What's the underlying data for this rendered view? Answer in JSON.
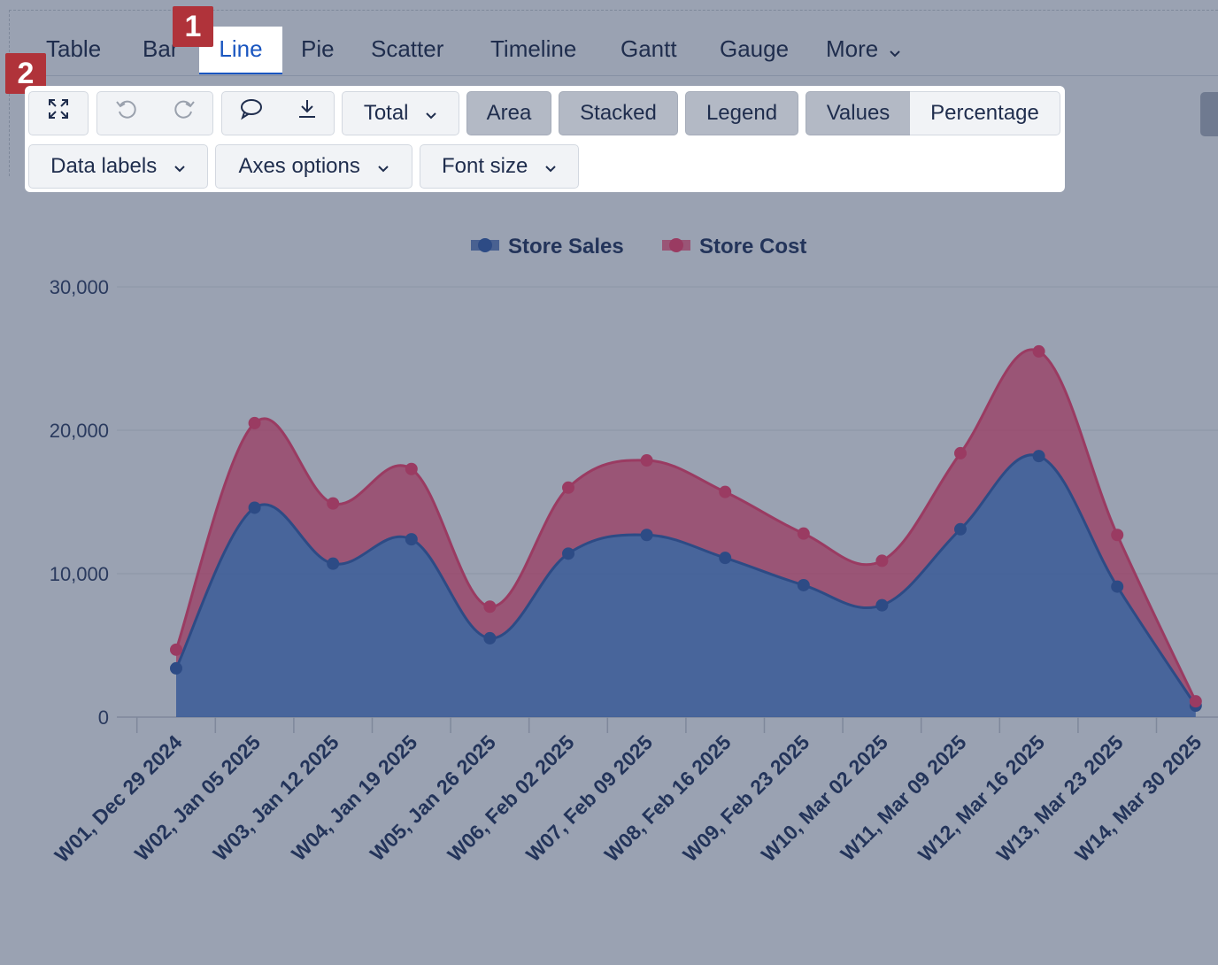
{
  "tabs": [
    {
      "label": "Table",
      "active": false
    },
    {
      "label": "Bar",
      "active": false
    },
    {
      "label": "Line",
      "active": true
    },
    {
      "label": "Pie",
      "active": false
    },
    {
      "label": "Scatter",
      "active": false
    },
    {
      "label": "Timeline",
      "active": false
    },
    {
      "label": "Gantt",
      "active": false
    },
    {
      "label": "Gauge",
      "active": false
    },
    {
      "label": "More",
      "active": false
    }
  ],
  "badges": {
    "first": "1",
    "second": "2"
  },
  "toolbar": {
    "total_label": "Total",
    "area_label": "Area",
    "stacked_label": "Stacked",
    "legend_label": "Legend",
    "values_label": "Values",
    "percentage_label": "Percentage",
    "data_labels_label": "Data labels",
    "axes_options_label": "Axes options",
    "font_size_label": "Font size"
  },
  "icons": {
    "expand": "expand-icon",
    "undo": "undo-icon",
    "redo": "redo-icon",
    "comment": "comment-icon",
    "download": "download-icon",
    "dropdown": "chevron-down-icon"
  },
  "colors": {
    "sales": "#3a5a96",
    "cost": "#9a3b62",
    "active_tab": "#1a56c0",
    "badge": "#b0333a"
  },
  "chart_data": {
    "type": "area",
    "stacked": true,
    "categories": [
      "W01, Dec 29 2024",
      "W02, Jan 05 2025",
      "W03, Jan 12 2025",
      "W04, Jan 19 2025",
      "W05, Jan 26 2025",
      "W06, Feb 02 2025",
      "W07, Feb 09 2025",
      "W08, Feb 16 2025",
      "W09, Feb 23 2025",
      "W10, Mar 02 2025",
      "W11, Mar 09 2025",
      "W12, Mar 16 2025",
      "W13, Mar 23 2025",
      "W14, Mar 30 2025"
    ],
    "series": [
      {
        "name": "Store Sales",
        "values": [
          3400,
          14600,
          10700,
          12400,
          5500,
          11400,
          12700,
          11100,
          9200,
          7800,
          13100,
          18200,
          9100,
          800
        ]
      },
      {
        "name": "Store Cost",
        "values": [
          1300,
          5900,
          4200,
          4900,
          2200,
          4600,
          5200,
          4600,
          3600,
          3100,
          5300,
          7300,
          3600,
          300
        ]
      }
    ],
    "yticks": [
      "0",
      "10,000",
      "20,000",
      "30,000"
    ],
    "ylim": [
      0,
      30000
    ],
    "grid": true,
    "legend_position": "top-center"
  }
}
